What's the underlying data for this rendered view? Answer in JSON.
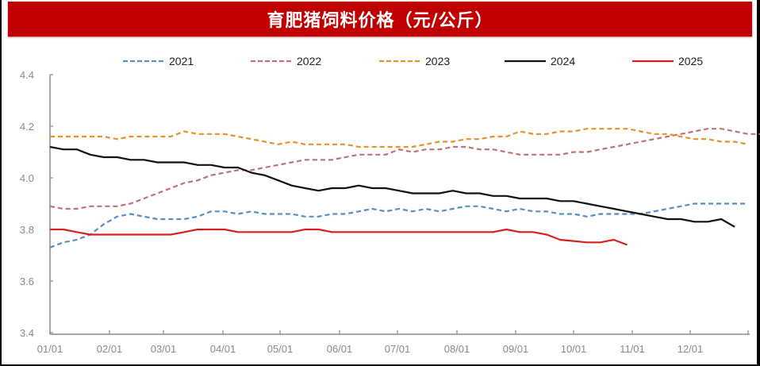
{
  "title": "育肥猪饲料价格（元/公斤）",
  "colors": {
    "banner": "#c00000"
  },
  "chart_data": {
    "type": "line",
    "title": "育肥猪饲料价格（元/公斤）",
    "xlabel": "",
    "ylabel": "",
    "ylim": [
      3.4,
      4.4
    ],
    "yticks": [
      "3.4",
      "3.6",
      "3.8",
      "4.0",
      "4.2",
      "4.4"
    ],
    "xticks": [
      "01/01",
      "02/01",
      "03/01",
      "04/01",
      "05/01",
      "06/01",
      "07/01",
      "08/01",
      "09/01",
      "10/01",
      "11/01",
      "12/01"
    ],
    "grid": false,
    "legend_position": "top",
    "x_unit": "week (52 weeks)",
    "series": [
      {
        "name": "2021",
        "color": "#5b8cc4",
        "dash": true,
        "values": [
          3.73,
          3.75,
          3.76,
          3.78,
          3.82,
          3.85,
          3.86,
          3.85,
          3.84,
          3.84,
          3.84,
          3.85,
          3.87,
          3.87,
          3.86,
          3.87,
          3.86,
          3.86,
          3.86,
          3.85,
          3.85,
          3.86,
          3.86,
          3.87,
          3.88,
          3.87,
          3.88,
          3.87,
          3.88,
          3.87,
          3.88,
          3.89,
          3.89,
          3.88,
          3.87,
          3.88,
          3.87,
          3.87,
          3.86,
          3.86,
          3.85,
          3.86,
          3.86,
          3.86,
          3.86,
          3.87,
          3.88,
          3.89,
          3.9,
          3.9,
          3.9,
          3.9,
          3.9
        ]
      },
      {
        "name": "2022",
        "color": "#c0707a",
        "dash": true,
        "values": [
          3.89,
          3.88,
          3.88,
          3.89,
          3.89,
          3.89,
          3.9,
          3.92,
          3.94,
          3.96,
          3.98,
          3.99,
          4.01,
          4.02,
          4.03,
          4.03,
          4.04,
          4.05,
          4.06,
          4.07,
          4.07,
          4.07,
          4.08,
          4.09,
          4.09,
          4.09,
          4.11,
          4.1,
          4.11,
          4.11,
          4.12,
          4.12,
          4.11,
          4.11,
          4.1,
          4.09,
          4.09,
          4.09,
          4.09,
          4.1,
          4.1,
          4.11,
          4.12,
          4.13,
          4.14,
          4.15,
          4.16,
          4.17,
          4.18,
          4.19,
          4.19,
          4.18,
          4.17,
          4.17
        ]
      },
      {
        "name": "2023",
        "color": "#e8902a",
        "dash": true,
        "values": [
          4.16,
          4.16,
          4.16,
          4.16,
          4.16,
          4.15,
          4.16,
          4.16,
          4.16,
          4.16,
          4.18,
          4.17,
          4.17,
          4.17,
          4.16,
          4.15,
          4.14,
          4.13,
          4.14,
          4.13,
          4.13,
          4.13,
          4.13,
          4.12,
          4.12,
          4.12,
          4.12,
          4.12,
          4.13,
          4.14,
          4.14,
          4.15,
          4.15,
          4.16,
          4.16,
          4.18,
          4.17,
          4.17,
          4.18,
          4.18,
          4.19,
          4.19,
          4.19,
          4.19,
          4.18,
          4.17,
          4.17,
          4.16,
          4.15,
          4.15,
          4.14,
          4.14,
          4.13
        ]
      },
      {
        "name": "2024",
        "color": "#111111",
        "dash": false,
        "values": [
          4.12,
          4.11,
          4.11,
          4.09,
          4.08,
          4.08,
          4.07,
          4.07,
          4.06,
          4.06,
          4.06,
          4.05,
          4.05,
          4.04,
          4.04,
          4.02,
          4.01,
          3.99,
          3.97,
          3.96,
          3.95,
          3.96,
          3.96,
          3.97,
          3.96,
          3.96,
          3.95,
          3.94,
          3.94,
          3.94,
          3.95,
          3.94,
          3.94,
          3.93,
          3.93,
          3.92,
          3.92,
          3.92,
          3.91,
          3.91,
          3.9,
          3.89,
          3.88,
          3.87,
          3.86,
          3.85,
          3.84,
          3.84,
          3.83,
          3.83,
          3.84,
          3.81
        ]
      },
      {
        "name": "2025",
        "color": "#d62020",
        "dash": false,
        "values": [
          3.8,
          3.8,
          3.79,
          3.78,
          3.78,
          3.78,
          3.78,
          3.78,
          3.78,
          3.78,
          3.79,
          3.8,
          3.8,
          3.8,
          3.79,
          3.79,
          3.79,
          3.79,
          3.79,
          3.8,
          3.8,
          3.79,
          3.79,
          3.79,
          3.79,
          3.79,
          3.79,
          3.79,
          3.79,
          3.79,
          3.79,
          3.79,
          3.79,
          3.79,
          3.8,
          3.79,
          3.79,
          3.78,
          3.76,
          3.755,
          3.75,
          3.75,
          3.76,
          3.74
        ]
      }
    ]
  }
}
